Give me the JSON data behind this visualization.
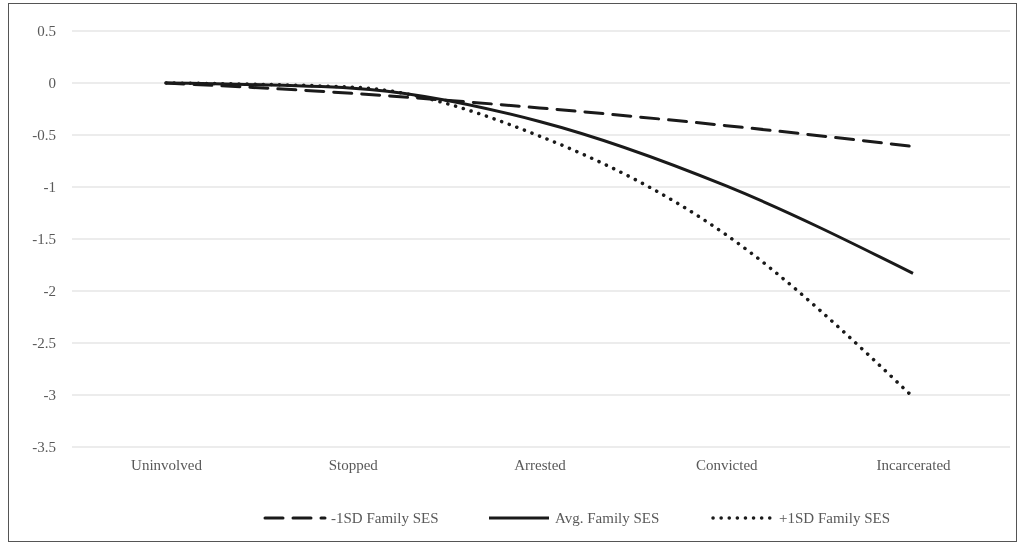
{
  "chart_data": {
    "type": "line",
    "categories": [
      "Uninvolved",
      "Stopped",
      "Arrested",
      "Convicted",
      "Incarcerated"
    ],
    "series": [
      {
        "name": "-1SD Family SES",
        "color": "#1a1a1a",
        "line_style": "dashed",
        "values": [
          0,
          -0.1,
          -0.24,
          -0.41,
          -0.61
        ]
      },
      {
        "name": "Avg. Family SES",
        "color": "#1a1a1a",
        "line_style": "solid",
        "values": [
          0,
          -0.05,
          -0.37,
          -0.99,
          -1.83
        ]
      },
      {
        "name": "+1SD Family SES",
        "color": "#1a1a1a",
        "line_style": "dotted",
        "values": [
          0,
          -0.04,
          -0.51,
          -1.46,
          -3.02
        ]
      }
    ],
    "ylim": [
      -3.5,
      0.5
    ],
    "yticks": [
      -3.5,
      -3,
      -2.5,
      -2,
      -1.5,
      -1,
      -0.5,
      0,
      0.5
    ],
    "grid": "y",
    "legend": "bottom",
    "marker": "none"
  }
}
